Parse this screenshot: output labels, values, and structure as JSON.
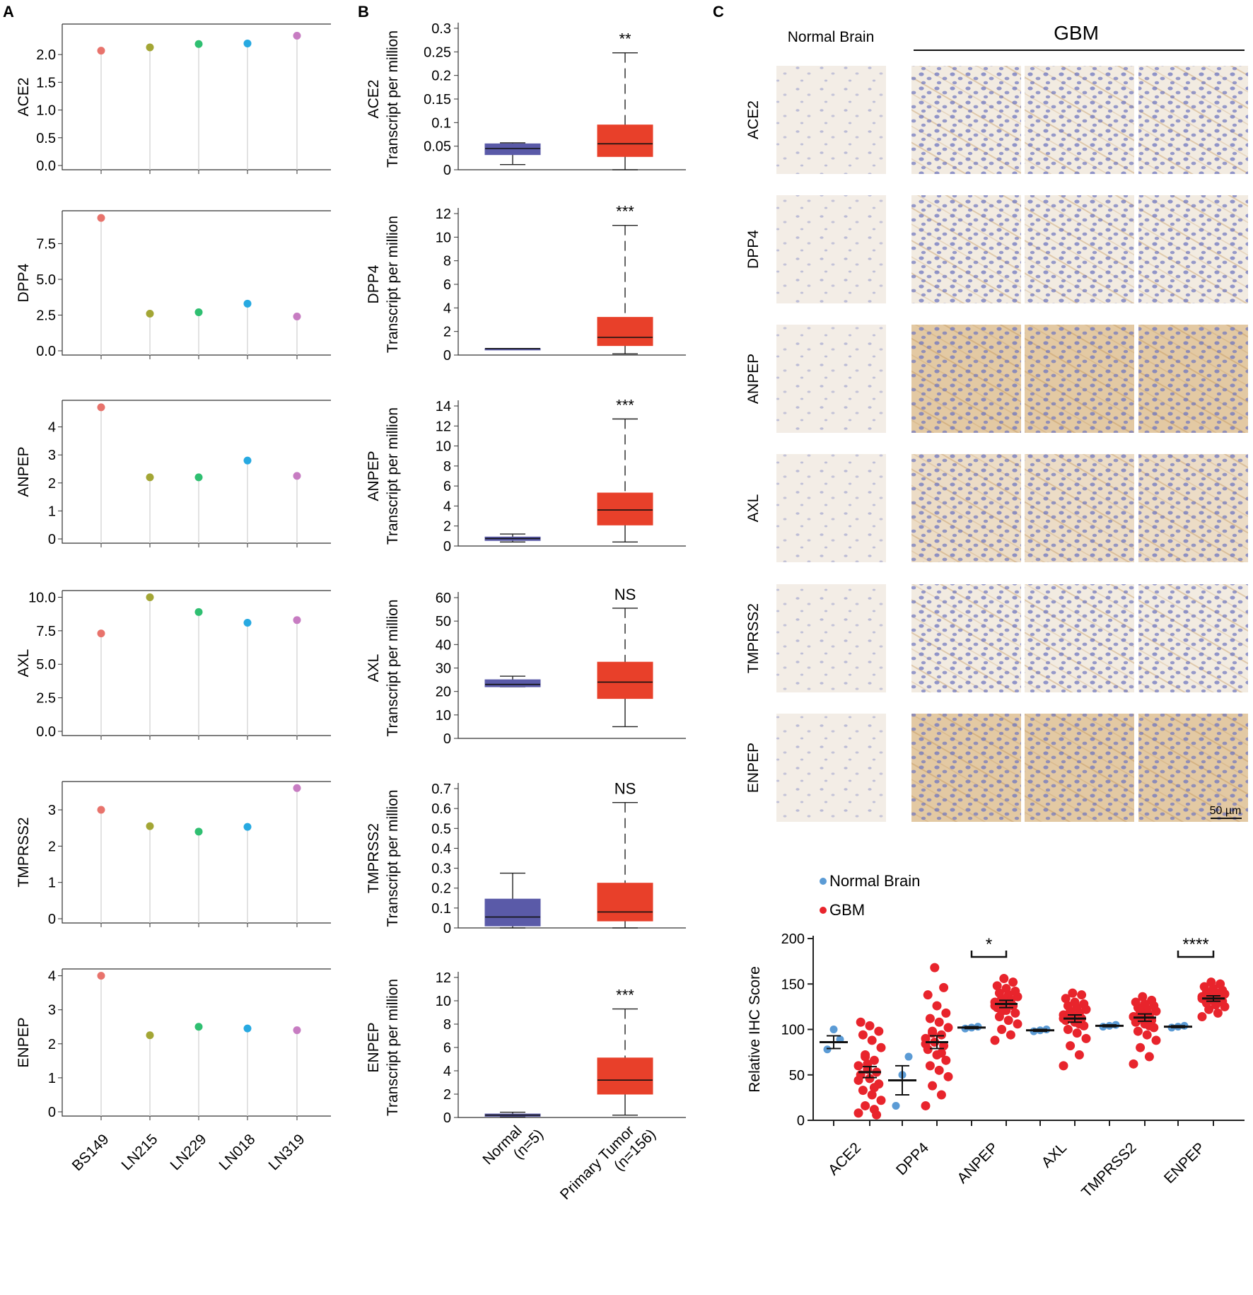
{
  "panel_labels": {
    "a": "A",
    "b": "B",
    "c": "C"
  },
  "colors": {
    "cell_lines": [
      "#e8736c",
      "#a3a635",
      "#2fbf71",
      "#27a9e1",
      "#c77cc2"
    ],
    "normal_box": "#5a5aa8",
    "tumor_box": "#e8402a",
    "ihc_normal": "#5b9bd5",
    "ihc_gbm": "#e8242c"
  },
  "chart_data": [
    {
      "type": "scatter",
      "subtype": "lollipop",
      "panel": "A",
      "categories": [
        "BS149",
        "LN215",
        "LN229",
        "LN018",
        "LN319"
      ],
      "panels": [
        {
          "gene": "ACE2",
          "values": [
            2.07,
            2.13,
            2.19,
            2.2,
            2.34
          ],
          "ylim": [
            0,
            2.55
          ],
          "ticks": [
            "0.0",
            "0.5",
            "1.0",
            "1.5",
            "2.0"
          ]
        },
        {
          "gene": "DPP4",
          "values": [
            9.3,
            2.6,
            2.7,
            3.3,
            2.4
          ],
          "ylim": [
            0,
            9.8
          ],
          "ticks": [
            "0.0",
            "2.5",
            "5.0",
            "7.5"
          ]
        },
        {
          "gene": "ANPEP",
          "values": [
            4.7,
            2.2,
            2.2,
            2.8,
            2.25
          ],
          "ylim": [
            0,
            4.95
          ],
          "ticks": [
            "0",
            "1",
            "2",
            "3",
            "4"
          ]
        },
        {
          "gene": "AXL",
          "values": [
            7.3,
            10.0,
            8.9,
            8.1,
            8.3
          ],
          "ylim": [
            0,
            10.5
          ],
          "ticks": [
            "0.0",
            "2.5",
            "5.0",
            "7.5",
            "10.0"
          ]
        },
        {
          "gene": "TMPRSS2",
          "values": [
            3.0,
            2.55,
            2.4,
            2.53,
            3.6
          ],
          "ylim": [
            0,
            3.78
          ],
          "ticks": [
            "0",
            "1",
            "2",
            "3"
          ]
        },
        {
          "gene": "ENPEP",
          "values": [
            4.0,
            2.25,
            2.5,
            2.45,
            2.4
          ],
          "ylim": [
            0,
            4.2
          ],
          "ticks": [
            "0",
            "1",
            "2",
            "3",
            "4"
          ]
        }
      ]
    },
    {
      "type": "box",
      "panel": "B",
      "ylabel_suffix": "Transcript per million",
      "categories": [
        "Normal\n(n=5)",
        "Primary Tumor\n(n=156)"
      ],
      "category_lines": [
        [
          "Normal",
          "(n=5)"
        ],
        [
          "Primary Tumor",
          "(n=156)"
        ]
      ],
      "panels": [
        {
          "gene": "ACE2",
          "ylim": [
            0,
            0.3
          ],
          "ticks": [
            "0",
            "0.05",
            "0.1",
            "0.15",
            "0.2",
            "0.25",
            "0.3"
          ],
          "sig": "**",
          "normal": {
            "min": 0.011,
            "q1": 0.032,
            "median": 0.045,
            "q3": 0.055,
            "max": 0.057
          },
          "tumor": {
            "min": 0.0,
            "q1": 0.028,
            "median": 0.055,
            "q3": 0.095,
            "max": 0.248
          }
        },
        {
          "gene": "DPP4",
          "ylim": [
            0,
            12
          ],
          "ticks": [
            "0",
            "2",
            "4",
            "6",
            "8",
            "10",
            "12"
          ],
          "sig": "***",
          "normal": {
            "min": 0.55,
            "q1": 0.55,
            "median": 0.55,
            "q3": 0.55,
            "max": 0.55
          },
          "tumor": {
            "min": 0.1,
            "q1": 0.8,
            "median": 1.5,
            "q3": 3.2,
            "max": 11.0
          }
        },
        {
          "gene": "ANPEP",
          "ylim": [
            0,
            14
          ],
          "ticks": [
            "0",
            "2",
            "4",
            "6",
            "8",
            "10",
            "12",
            "14"
          ],
          "sig": "***",
          "normal": {
            "min": 0.4,
            "q1": 0.55,
            "median": 0.75,
            "q3": 0.9,
            "max": 1.2
          },
          "tumor": {
            "min": 0.4,
            "q1": 2.1,
            "median": 3.6,
            "q3": 5.3,
            "max": 12.7
          }
        },
        {
          "gene": "AXL",
          "ylim": [
            0,
            60
          ],
          "ticks": [
            "0",
            "10",
            "20",
            "30",
            "40",
            "50",
            "60"
          ],
          "sig": "NS",
          "normal": {
            "min": 22.0,
            "q1": 22.0,
            "median": 23.0,
            "q3": 25.0,
            "max": 26.5
          },
          "tumor": {
            "min": 5.0,
            "q1": 17.0,
            "median": 24.0,
            "q3": 32.5,
            "max": 55.5
          }
        },
        {
          "gene": "TMPRSS2",
          "ylim": [
            0,
            0.7
          ],
          "ticks": [
            "0",
            "0.1",
            "0.2",
            "0.3",
            "0.4",
            "0.5",
            "0.6",
            "0.7"
          ],
          "sig": "NS",
          "normal": {
            "min": 0.0,
            "q1": 0.01,
            "median": 0.055,
            "q3": 0.145,
            "max": 0.275
          },
          "tumor": {
            "min": 0.0,
            "q1": 0.035,
            "median": 0.08,
            "q3": 0.225,
            "max": 0.63
          }
        },
        {
          "gene": "ENPEP",
          "ylim": [
            0,
            12
          ],
          "ticks": [
            "0",
            "2",
            "4",
            "6",
            "8",
            "10",
            "12"
          ],
          "sig": "***",
          "normal": {
            "min": 0.05,
            "q1": 0.1,
            "median": 0.2,
            "q3": 0.3,
            "max": 0.45
          },
          "tumor": {
            "min": 0.2,
            "q1": 2.0,
            "median": 3.2,
            "q3": 5.1,
            "max": 9.3
          }
        }
      ]
    },
    {
      "type": "scatter",
      "subtype": "dot plot with mean and SEM",
      "panel": "C",
      "ylabel": "Relative IHC Score",
      "ylim": [
        0,
        200
      ],
      "ticks": [
        "0",
        "50",
        "100",
        "150",
        "200"
      ],
      "legend": [
        "Normal Brain",
        "GBM"
      ],
      "categories": [
        "ACE2",
        "DPP4",
        "ANPEP",
        "AXL",
        "TMPRSS2",
        "ENPEP"
      ],
      "groups": [
        {
          "gene": "ACE2",
          "normal": {
            "mean": 86,
            "sem": 7,
            "points": [
              78,
              100,
              89
            ]
          },
          "gbm": {
            "mean": 53,
            "sem": 6,
            "points": [
              8,
              12,
              16,
              22,
              28,
              33,
              40,
              46,
              50,
              53,
              56,
              60,
              66,
              72,
              80,
              88,
              94,
              98,
              104,
              108,
              6,
              62,
              44,
              36,
              70
            ]
          },
          "sig": ""
        },
        {
          "gene": "DPP4",
          "normal": {
            "mean": 44,
            "sem": 16,
            "points": [
              16,
              50,
              70
            ]
          },
          "gbm": {
            "mean": 86,
            "sem": 7,
            "points": [
              16,
              28,
              38,
              48,
              55,
              60,
              66,
              72,
              78,
              82,
              86,
              90,
              94,
              98,
              102,
              108,
              112,
              118,
              126,
              138,
              146,
              168,
              84,
              74,
              96
            ]
          },
          "sig": ""
        },
        {
          "gene": "ANPEP",
          "normal": {
            "mean": 102,
            "sem": 1,
            "points": [
              101,
              102,
              103
            ]
          },
          "gbm": {
            "mean": 128,
            "sem": 4,
            "points": [
              88,
              94,
              100,
              106,
              110,
              114,
              118,
              121,
              124,
              126,
              128,
              130,
              132,
              134,
              136,
              138,
              140,
              142,
              145,
              148,
              152,
              156,
              126,
              132,
              120
            ]
          },
          "sig": "*"
        },
        {
          "gene": "AXL",
          "normal": {
            "mean": 99,
            "sem": 1,
            "points": [
              98,
              99,
              100
            ]
          },
          "gbm": {
            "mean": 112,
            "sem": 4,
            "points": [
              60,
              72,
              82,
              90,
              96,
              100,
              104,
              108,
              110,
              112,
              114,
              116,
              118,
              120,
              122,
              124,
              126,
              128,
              130,
              134,
              138,
              140,
              112,
              106,
              118
            ]
          },
          "sig": ""
        },
        {
          "gene": "TMPRSS2",
          "normal": {
            "mean": 104,
            "sem": 1,
            "points": [
              103,
              104,
              105
            ]
          },
          "gbm": {
            "mean": 113,
            "sem": 4,
            "points": [
              62,
              70,
              80,
              88,
              94,
              98,
              102,
              106,
              108,
              110,
              112,
              114,
              116,
              118,
              120,
              122,
              124,
              126,
              128,
              130,
              132,
              136,
              114,
              104,
              120
            ]
          },
          "sig": ""
        },
        {
          "gene": "ENPEP",
          "normal": {
            "mean": 103,
            "sem": 1,
            "points": [
              102,
              103,
              104
            ]
          },
          "gbm": {
            "mean": 134,
            "sem": 3,
            "points": [
              114,
              118,
              122,
              125,
              127,
              129,
              131,
              132,
              133,
              134,
              135,
              136,
              137,
              138,
              139,
              140,
              141,
              143,
              145,
              147,
              150,
              152,
              134,
              130,
              138
            ]
          },
          "sig": "****"
        }
      ]
    }
  ],
  "ihc": {
    "column_headers": {
      "normal": "Normal Brain",
      "gbm": "GBM"
    },
    "rows": [
      "ACE2",
      "DPP4",
      "ANPEP",
      "AXL",
      "TMPRSS2",
      "ENPEP"
    ],
    "stain": [
      "light",
      "light",
      "strong",
      "medium",
      "light",
      "strong"
    ],
    "scale_bar": "50 µm"
  }
}
